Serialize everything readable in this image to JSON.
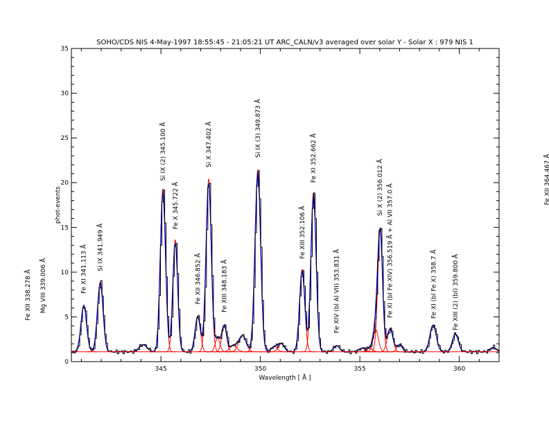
{
  "chart_data": {
    "type": "line",
    "title": "SOHO/CDS NIS   4-May-1997 18:55:45 - 21:05:21 UT ARC_CALN/v3 averaged over solar Y - Solar X : 979    NIS 1",
    "xlabel": "Wavelength [ Å ]",
    "ylabel": "phot-events",
    "xlim": [
      340.5,
      362.0
    ],
    "ylim": [
      0,
      35
    ],
    "xticks": [
      345,
      350,
      355,
      360
    ],
    "yticks": [
      0,
      5,
      10,
      15,
      20,
      25,
      30,
      35
    ],
    "grid": false,
    "colors": {
      "observed": "#000000",
      "fit_total": "#0000cc",
      "components": "#ff0000"
    },
    "background": 1.1,
    "peaks": [
      {
        "center": 341.12,
        "amplitude": 5.2,
        "sigma": 0.14
      },
      {
        "center": 341.95,
        "amplitude": 7.8,
        "sigma": 0.14
      },
      {
        "center": 344.1,
        "amplitude": 0.8,
        "sigma": 0.2
      },
      {
        "center": 345.1,
        "amplitude": 18.2,
        "sigma": 0.13
      },
      {
        "center": 345.72,
        "amplitude": 12.5,
        "sigma": 0.12
      },
      {
        "center": 346.85,
        "amplitude": 4.0,
        "sigma": 0.13
      },
      {
        "center": 347.4,
        "amplitude": 19.3,
        "sigma": 0.13
      },
      {
        "center": 347.85,
        "amplitude": 1.5,
        "sigma": 0.12
      },
      {
        "center": 348.18,
        "amplitude": 3.0,
        "sigma": 0.12
      },
      {
        "center": 348.65,
        "amplitude": 0.7,
        "sigma": 0.18
      },
      {
        "center": 349.1,
        "amplitude": 1.8,
        "sigma": 0.18
      },
      {
        "center": 349.87,
        "amplitude": 20.3,
        "sigma": 0.14
      },
      {
        "center": 350.7,
        "amplitude": 0.6,
        "sigma": 0.15
      },
      {
        "center": 351.05,
        "amplitude": 0.9,
        "sigma": 0.15
      },
      {
        "center": 352.1,
        "amplitude": 9.2,
        "sigma": 0.13
      },
      {
        "center": 352.67,
        "amplitude": 17.8,
        "sigma": 0.13
      },
      {
        "center": 353.83,
        "amplitude": 0.7,
        "sigma": 0.15
      },
      {
        "center": 355.1,
        "amplitude": 0.4,
        "sigma": 0.15
      },
      {
        "center": 355.5,
        "amplitude": 0.4,
        "sigma": 0.15
      },
      {
        "center": 355.8,
        "amplitude": 2.5,
        "sigma": 0.13
      },
      {
        "center": 356.02,
        "amplitude": 13.6,
        "sigma": 0.12
      },
      {
        "center": 356.52,
        "amplitude": 2.6,
        "sigma": 0.14
      },
      {
        "center": 357.0,
        "amplitude": 0.8,
        "sigma": 0.13
      },
      {
        "center": 358.68,
        "amplitude": 3.0,
        "sigma": 0.16
      },
      {
        "center": 359.8,
        "amplitude": 2.0,
        "sigma": 0.15
      },
      {
        "center": 361.7,
        "amplitude": 0.5,
        "sigma": 0.15
      }
    ],
    "annotations": [
      {
        "text": "Fe XII  338.278 Å",
        "x": 338.278,
        "y": 4.6
      },
      {
        "text": "Mg VIII  339.006 Å",
        "x": 339.006,
        "y": 5.4
      },
      {
        "text": "Fe XI 341.113 Å",
        "x": 341.113,
        "y": 7.6
      },
      {
        "text": "Si IX 341.949 Å",
        "x": 341.949,
        "y": 10.1
      },
      {
        "text": "Si IX (2)  345.100 Å",
        "x": 345.1,
        "y": 20.2
      },
      {
        "text": "Fe X 345.722 Å",
        "x": 345.722,
        "y": 14.8
      },
      {
        "text": "Fe XII  346.852 Å",
        "x": 346.852,
        "y": 6.4
      },
      {
        "text": "Si X 347.402 Å",
        "x": 347.402,
        "y": 21.7
      },
      {
        "text": "Fe XIII 348.183 Å",
        "x": 348.183,
        "y": 5.5
      },
      {
        "text": "Si IX (3) 349.873 Å",
        "x": 349.873,
        "y": 22.8
      },
      {
        "text": "Fe XIII  352.106 Å",
        "x": 352.106,
        "y": 11.5
      },
      {
        "text": "Fe XI 352.662 Å",
        "x": 352.662,
        "y": 20.0
      },
      {
        "text": "Fe XIV (bl Al VII) 353.831 Å",
        "x": 353.831,
        "y": 3.2
      },
      {
        "text": "Si X (2)  356.012 Å",
        "x": 356.012,
        "y": 16.3
      },
      {
        "text": "Fe XI (bl Fe XIV) 356.519 Å + Al VII 357.0 Å",
        "x": 356.519,
        "y": 4.9
      },
      {
        "text": "Fe XI (bl Fe X) 358.7 Å",
        "x": 358.7,
        "y": 4.8
      },
      {
        "text": "Fe XIII (2) (bl) 359.800 Å",
        "x": 359.8,
        "y": 3.5
      },
      {
        "text": "Fe XII 364.467 Å",
        "x": 364.467,
        "y": 17.5
      }
    ]
  }
}
